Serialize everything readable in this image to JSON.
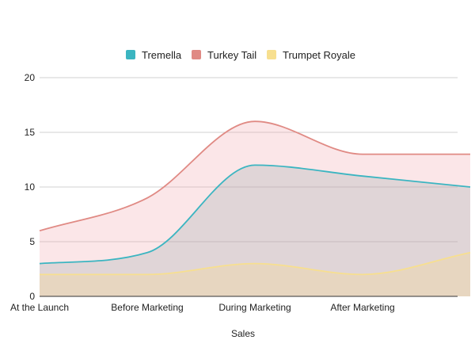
{
  "chart_data": {
    "type": "area",
    "title": "",
    "xlabel": "Sales",
    "ylabel": "",
    "categories": [
      "At the Launch",
      "Before Marketing",
      "During Marketing",
      "After Marketing",
      ""
    ],
    "ylim": [
      0,
      20
    ],
    "yticks": [
      0,
      5,
      10,
      15,
      20
    ],
    "grid": true,
    "legend_position": "top",
    "stacked": false,
    "series": [
      {
        "name": "Tremella",
        "values": [
          3,
          4,
          12,
          11,
          10
        ],
        "color": "#3bb5c1"
      },
      {
        "name": "Turkey Tail",
        "values": [
          6,
          9,
          16,
          13,
          13
        ],
        "color": "#e08a84"
      },
      {
        "name": "Trumpet Royale",
        "values": [
          2,
          2,
          3,
          2,
          4
        ],
        "color": "#f7df8f"
      }
    ]
  }
}
